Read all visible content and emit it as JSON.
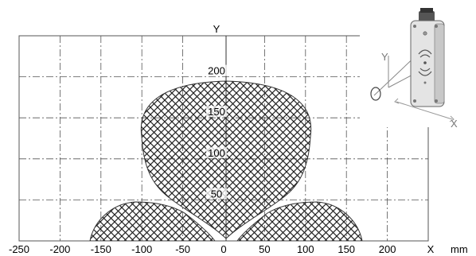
{
  "diagram": {
    "x_axis_name": "X",
    "y_axis_name": "Y",
    "unit": "mm",
    "x_tick_labels": [
      "-250",
      "-200",
      "-150",
      "-100",
      "-50",
      "0",
      "50",
      "100",
      "150",
      "200"
    ],
    "y_tick_labels": [
      "200",
      "150",
      "100",
      "50"
    ],
    "x_range": [
      -250,
      250
    ],
    "y_range": [
      0,
      250
    ],
    "grid": true,
    "read_field_fill": "crosshatch"
  },
  "device_inset": {
    "x_label": "X",
    "y_label": "Y",
    "icon": "reader-device-icon"
  },
  "colors": {
    "grid": "#555555",
    "hatch": "#222222",
    "device": "#d9d9d9",
    "inset_lines": "#888888"
  }
}
